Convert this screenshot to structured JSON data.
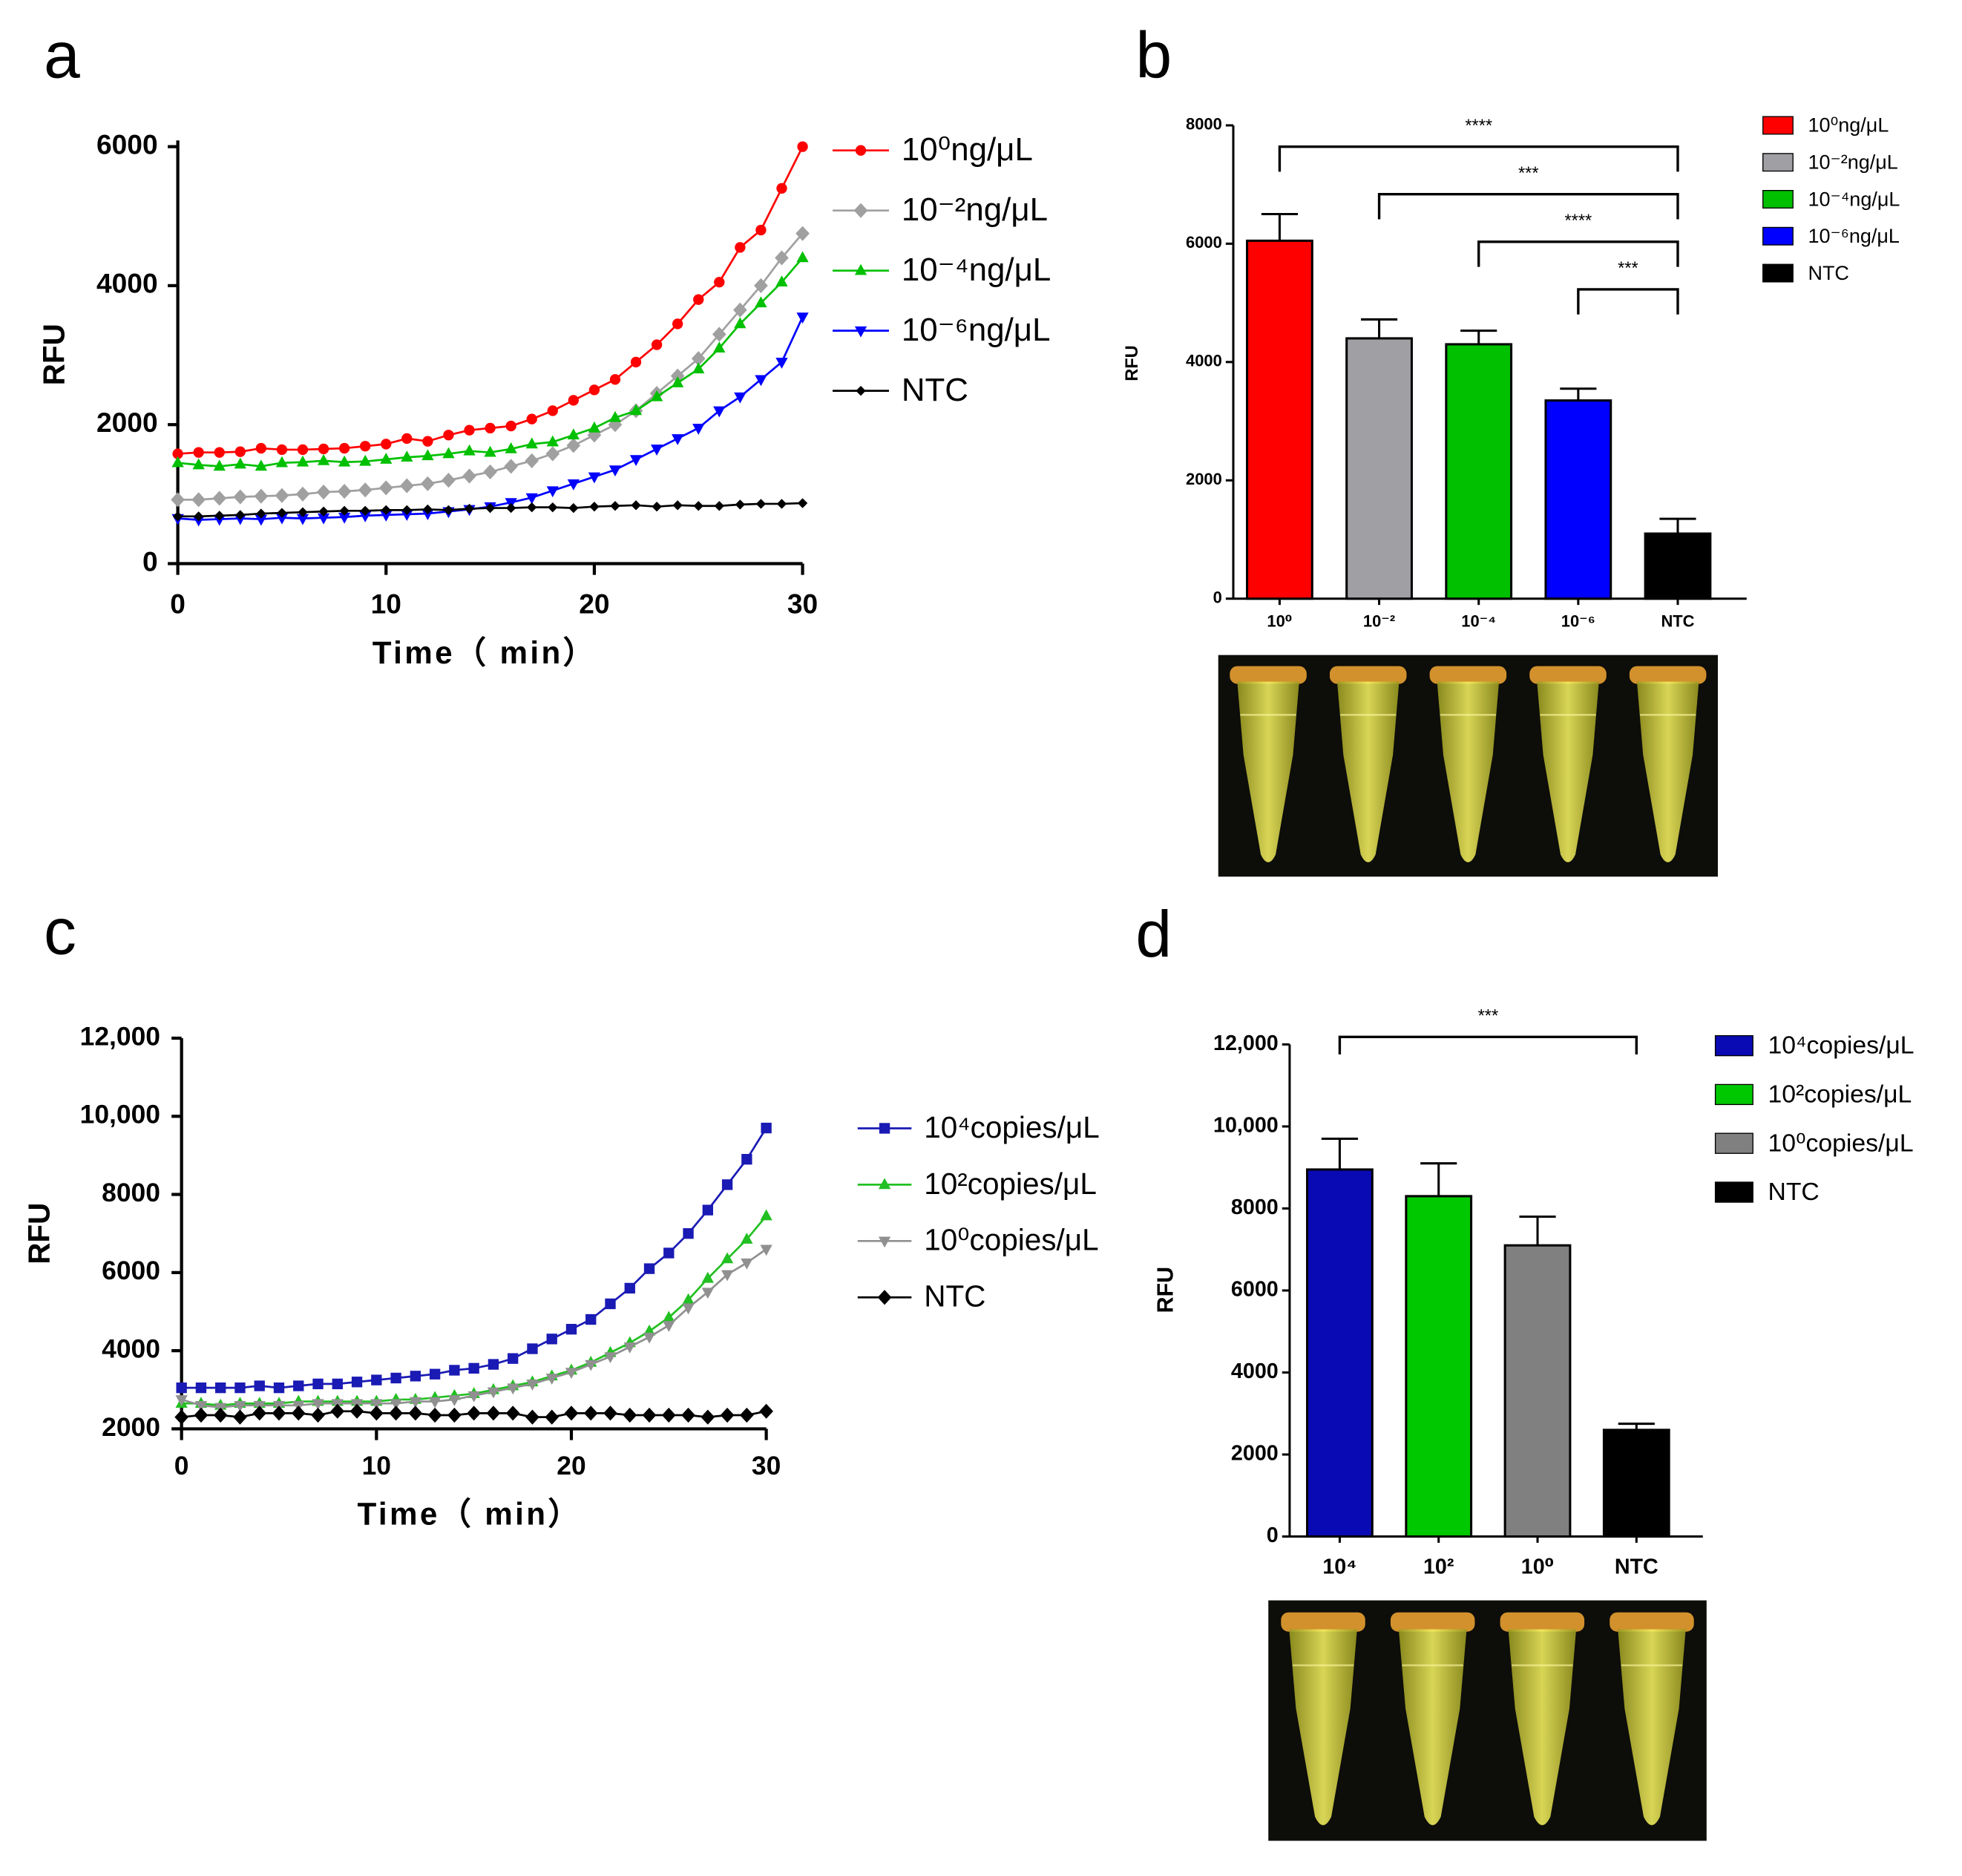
{
  "chart_data": [
    {
      "type": "line",
      "panel": "a",
      "xlabel": "Time（ min）",
      "ylabel": "RFU",
      "x": [
        0,
        1,
        2,
        3,
        4,
        5,
        6,
        7,
        8,
        9,
        10,
        11,
        12,
        13,
        14,
        15,
        16,
        17,
        18,
        19,
        20,
        21,
        22,
        23,
        24,
        25,
        26,
        27,
        28,
        29,
        30
      ],
      "xlim": [
        0,
        30
      ],
      "xticks": [
        0,
        10,
        20,
        30
      ],
      "ylim": [
        0,
        6000
      ],
      "yticks": [
        0,
        2000,
        4000,
        6000
      ],
      "grid": false,
      "series": [
        {
          "name": "10⁰ng/μL",
          "color": "#ff0000",
          "marker": "circle",
          "values": [
            1580,
            1600,
            1600,
            1610,
            1660,
            1640,
            1640,
            1650,
            1660,
            1690,
            1720,
            1800,
            1760,
            1850,
            1920,
            1950,
            1980,
            2080,
            2200,
            2350,
            2500,
            2650,
            2900,
            3150,
            3450,
            3800,
            4050,
            4550,
            4800,
            5400,
            6000
          ]
        },
        {
          "name": "10⁻²ng/μL",
          "color": "#a0a0a0",
          "marker": "diamond",
          "values": [
            920,
            920,
            940,
            960,
            970,
            980,
            1000,
            1030,
            1040,
            1060,
            1090,
            1120,
            1150,
            1200,
            1260,
            1320,
            1400,
            1480,
            1580,
            1700,
            1850,
            2000,
            2200,
            2450,
            2700,
            2950,
            3300,
            3650,
            4000,
            4400,
            4750
          ]
        },
        {
          "name": "10⁻⁴ng/μL",
          "color": "#00c000",
          "marker": "triangle",
          "values": [
            1450,
            1420,
            1400,
            1430,
            1400,
            1450,
            1460,
            1480,
            1460,
            1470,
            1500,
            1530,
            1550,
            1580,
            1620,
            1600,
            1650,
            1720,
            1750,
            1850,
            1950,
            2100,
            2200,
            2400,
            2600,
            2800,
            3100,
            3450,
            3750,
            4050,
            4400
          ]
        },
        {
          "name": "10⁻⁶ng/μL",
          "color": "#0000ff",
          "marker": "triangle-down",
          "values": [
            650,
            630,
            640,
            650,
            640,
            660,
            650,
            660,
            670,
            690,
            700,
            710,
            720,
            750,
            780,
            820,
            880,
            950,
            1050,
            1150,
            1250,
            1350,
            1500,
            1650,
            1800,
            1950,
            2200,
            2400,
            2650,
            2900,
            3550
          ]
        },
        {
          "name": "NTC",
          "color": "#000000",
          "marker": "diamond-small",
          "values": [
            680,
            680,
            690,
            700,
            720,
            730,
            740,
            750,
            760,
            760,
            770,
            770,
            780,
            770,
            790,
            800,
            800,
            810,
            810,
            800,
            820,
            830,
            840,
            820,
            840,
            830,
            830,
            850,
            860,
            860,
            870
          ]
        }
      ]
    },
    {
      "type": "bar",
      "panel": "b",
      "ylabel": "RFU",
      "categories": [
        "10⁰",
        "10⁻²",
        "10⁻⁴",
        "10⁻⁶",
        "NTC"
      ],
      "values": [
        6050,
        4400,
        4300,
        3350,
        1100
      ],
      "errors": [
        450,
        320,
        230,
        200,
        250
      ],
      "colors": [
        "#ff0000",
        "#a0a0a4",
        "#00c000",
        "#0000ff",
        "#000000"
      ],
      "legend": [
        "10⁰ng/μL",
        "10⁻²ng/μL",
        "10⁻⁴ng/μL",
        "10⁻⁶ng/μL",
        "NTC"
      ],
      "ylim": [
        0,
        8000
      ],
      "yticks": [
        0,
        2000,
        4000,
        6000,
        8000
      ],
      "grid": false,
      "significance": [
        {
          "label": "****",
          "from": 0,
          "to": 4
        },
        {
          "label": "***",
          "from": 1,
          "to": 4
        },
        {
          "label": "****",
          "from": 2,
          "to": 4
        },
        {
          "label": "***",
          "from": 3,
          "to": 4
        }
      ]
    },
    {
      "type": "line",
      "panel": "c",
      "xlabel": "Time（ min）",
      "ylabel": "RFU",
      "x": [
        0,
        1,
        2,
        3,
        4,
        5,
        6,
        7,
        8,
        9,
        10,
        11,
        12,
        13,
        14,
        15,
        16,
        17,
        18,
        19,
        20,
        21,
        22,
        23,
        24,
        25,
        26,
        27,
        28,
        29,
        30
      ],
      "xlim": [
        0,
        30
      ],
      "xticks": [
        0,
        10,
        20,
        30
      ],
      "ylim": [
        2000,
        12000
      ],
      "yticks": [
        2000,
        4000,
        6000,
        8000,
        {
          "value": 10000,
          "label": "10,000"
        },
        {
          "value": 12000,
          "label": "12,000"
        }
      ],
      "grid": false,
      "series": [
        {
          "name": "10⁴copies/μL",
          "color": "#1a1ab4",
          "marker": "square",
          "values": [
            3050,
            3050,
            3050,
            3050,
            3100,
            3050,
            3100,
            3150,
            3150,
            3200,
            3250,
            3300,
            3350,
            3400,
            3500,
            3550,
            3650,
            3800,
            4050,
            4300,
            4550,
            4800,
            5200,
            5600,
            6100,
            6500,
            7000,
            7600,
            8250,
            8900,
            9700
          ]
        },
        {
          "name": "10²copies/μL",
          "color": "#22c022",
          "marker": "triangle",
          "values": [
            2650,
            2650,
            2600,
            2650,
            2650,
            2650,
            2700,
            2700,
            2700,
            2700,
            2700,
            2750,
            2750,
            2800,
            2850,
            2900,
            3000,
            3100,
            3200,
            3350,
            3500,
            3700,
            3950,
            4200,
            4500,
            4850,
            5300,
            5850,
            6350,
            6850,
            7450
          ]
        },
        {
          "name": "10⁰copies/μL",
          "color": "#909090",
          "marker": "triangle-down",
          "values": [
            2750,
            2600,
            2550,
            2600,
            2600,
            2600,
            2600,
            2650,
            2650,
            2650,
            2650,
            2650,
            2700,
            2700,
            2750,
            2850,
            2950,
            3050,
            3150,
            3300,
            3450,
            3650,
            3850,
            4100,
            4350,
            4650,
            5100,
            5500,
            5950,
            6250,
            6600
          ]
        },
        {
          "name": "NTC",
          "color": "#000000",
          "marker": "diamond",
          "values": [
            2300,
            2350,
            2350,
            2300,
            2400,
            2400,
            2400,
            2350,
            2450,
            2450,
            2400,
            2400,
            2400,
            2350,
            2350,
            2400,
            2400,
            2400,
            2300,
            2300,
            2400,
            2400,
            2400,
            2350,
            2350,
            2350,
            2350,
            2300,
            2350,
            2350,
            2450
          ]
        }
      ]
    },
    {
      "type": "bar",
      "panel": "d",
      "ylabel": "RFU",
      "categories": [
        "10⁴",
        "10²",
        "10⁰",
        "NTC"
      ],
      "values": [
        8950,
        8300,
        7100,
        2600
      ],
      "errors": [
        750,
        800,
        700,
        150
      ],
      "colors": [
        "#0a0ab4",
        "#00c800",
        "#808080",
        "#000000"
      ],
      "legend": [
        "10⁴copies/μL",
        "10²copies/μL",
        "10⁰copies/μL",
        "NTC"
      ],
      "ylim": [
        0,
        12000
      ],
      "yticks": [
        0,
        2000,
        4000,
        6000,
        8000,
        {
          "value": 10000,
          "label": "10,000"
        },
        {
          "value": 12000,
          "label": "12,000"
        }
      ],
      "grid": false,
      "significance": [
        {
          "label": "***",
          "from": 0,
          "to": 3
        }
      ]
    }
  ]
}
